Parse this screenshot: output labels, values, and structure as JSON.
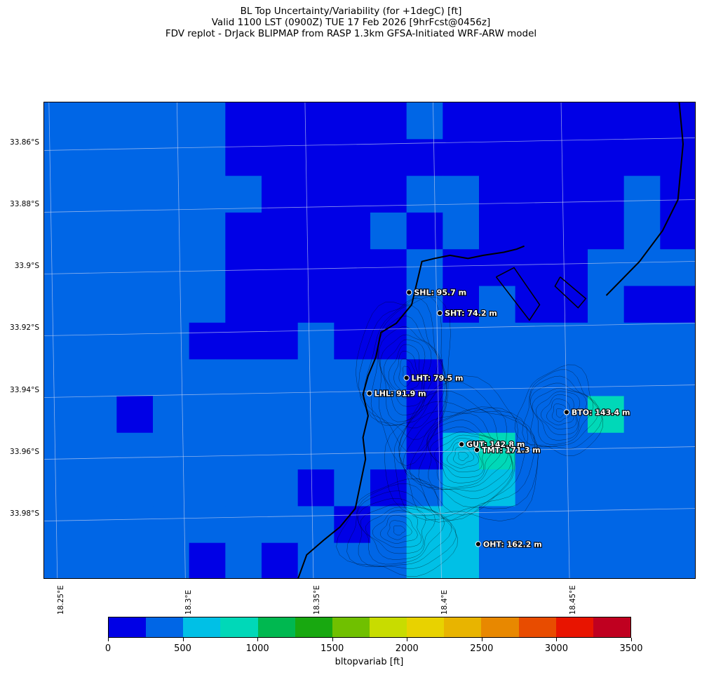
{
  "title": {
    "line1": "BL Top Uncertainty/Variability (for +1degC) [ft]",
    "line2": "Valid 1100 LST (0900Z) TUE 17 Feb 2026 [9hrFcst@0456z]",
    "line3": "FDV replot - DrJack BLIPMAP from RASP 1.3km GFSA-Initiated WRF-ARW model"
  },
  "lat_labels": [
    "33.86°S",
    "33.88°S",
    "33.9°S",
    "33.92°S",
    "33.94°S",
    "33.96°S",
    "33.98°S"
  ],
  "lon_labels": [
    "18.25°E",
    "18.3°E",
    "18.35°E",
    "18.4°E",
    "18.45°E"
  ],
  "stations": [
    {
      "id": "SHL",
      "label": "SHL: 95.7 m",
      "lon": 18.389,
      "lat": -33.908
    },
    {
      "id": "SHT",
      "label": "SHT: 74.2 m",
      "lon": 18.401,
      "lat": -33.9147
    },
    {
      "id": "LHT",
      "label": "LHT: 79.5 m",
      "lon": 18.388,
      "lat": -33.9357
    },
    {
      "id": "LHL",
      "label": "LHL: 91.9 m",
      "lon": 18.3735,
      "lat": -33.9407
    },
    {
      "id": "BTO",
      "label": "BTO: 143.4 m",
      "lon": 18.4505,
      "lat": -33.9468
    },
    {
      "id": "GUT",
      "label": "GUT: 142.8 m",
      "lon": 18.4095,
      "lat": -33.9572
    },
    {
      "id": "TMT",
      "label": "TMT: 171.3 m",
      "lon": 18.4155,
      "lat": -33.959
    },
    {
      "id": "OHT",
      "label": "OHT: 162.2 m",
      "lon": 18.416,
      "lat": -33.9895
    }
  ],
  "colorbar": {
    "label": "bltopvariab [ft]",
    "ticks": [
      "0",
      "500",
      "1000",
      "1500",
      "2000",
      "2500",
      "3000",
      "3500"
    ],
    "min": 0,
    "max": 3500,
    "step": 250,
    "colors": [
      "#0000e6",
      "#0066e6",
      "#00c0e6",
      "#00d8b8",
      "#00b850",
      "#18a810",
      "#70c000",
      "#c8dc00",
      "#e8d200",
      "#e8b400",
      "#e88800",
      "#e84c00",
      "#e81400",
      "#c00020"
    ]
  },
  "field": {
    "rows": 13,
    "cols": 18,
    "values": [
      [
        375,
        375,
        375,
        375,
        375,
        125,
        125,
        125,
        125,
        125,
        375,
        125,
        125,
        125,
        125,
        125,
        125,
        125
      ],
      [
        375,
        375,
        375,
        375,
        375,
        125,
        125,
        125,
        125,
        125,
        125,
        125,
        125,
        125,
        125,
        125,
        125,
        125
      ],
      [
        375,
        375,
        375,
        375,
        375,
        375,
        125,
        125,
        125,
        125,
        375,
        375,
        125,
        125,
        125,
        125,
        375,
        125
      ],
      [
        375,
        375,
        375,
        375,
        375,
        125,
        125,
        125,
        125,
        375,
        125,
        375,
        125,
        125,
        125,
        125,
        375,
        125
      ],
      [
        375,
        375,
        375,
        375,
        375,
        125,
        125,
        125,
        125,
        125,
        375,
        125,
        125,
        125,
        125,
        375,
        375,
        375
      ],
      [
        375,
        375,
        375,
        375,
        375,
        125,
        125,
        125,
        125,
        125,
        375,
        125,
        375,
        125,
        125,
        375,
        125,
        125
      ],
      [
        375,
        375,
        375,
        375,
        125,
        125,
        125,
        375,
        125,
        125,
        375,
        375,
        375,
        375,
        375,
        375,
        375,
        375
      ],
      [
        375,
        375,
        375,
        375,
        375,
        375,
        375,
        375,
        375,
        375,
        125,
        375,
        375,
        375,
        375,
        375,
        375,
        375
      ],
      [
        375,
        375,
        125,
        375,
        375,
        375,
        375,
        375,
        375,
        375,
        125,
        375,
        375,
        375,
        375,
        875,
        375,
        375
      ],
      [
        375,
        375,
        375,
        375,
        375,
        375,
        375,
        375,
        375,
        375,
        125,
        625,
        875,
        375,
        375,
        375,
        375,
        375
      ],
      [
        375,
        375,
        375,
        375,
        375,
        375,
        375,
        125,
        375,
        125,
        375,
        625,
        625,
        375,
        375,
        375,
        375,
        375
      ],
      [
        375,
        375,
        375,
        375,
        375,
        375,
        375,
        375,
        125,
        375,
        625,
        625,
        375,
        375,
        375,
        375,
        375,
        375
      ],
      [
        375,
        375,
        375,
        375,
        125,
        375,
        125,
        375,
        375,
        375,
        625,
        625,
        375,
        375,
        375,
        375,
        375,
        375
      ]
    ]
  }
}
